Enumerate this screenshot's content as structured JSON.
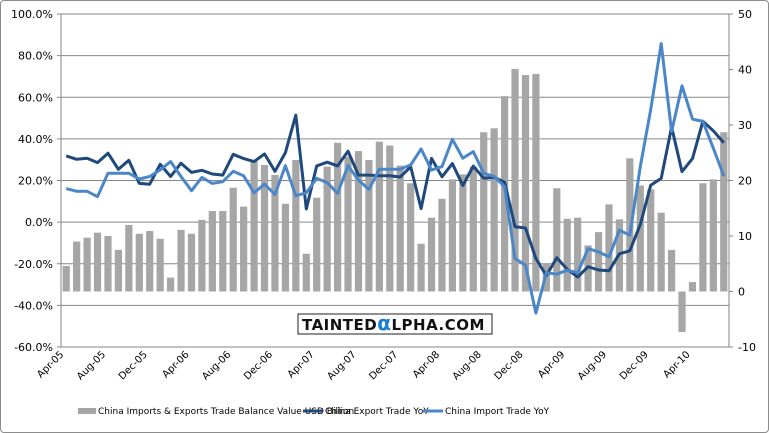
{
  "chart_data": {
    "type": "bar+line",
    "title": "",
    "x": [
      "Apr-05",
      "May-05",
      "Jun-05",
      "Jul-05",
      "Aug-05",
      "Sep-05",
      "Oct-05",
      "Nov-05",
      "Dec-05",
      "Jan-06",
      "Feb-06",
      "Mar-06",
      "Apr-06",
      "May-06",
      "Jun-06",
      "Jul-06",
      "Aug-06",
      "Sep-06",
      "Oct-06",
      "Nov-06",
      "Dec-06",
      "Jan-07",
      "Feb-07",
      "Mar-07",
      "Apr-07",
      "May-07",
      "Jun-07",
      "Jul-07",
      "Aug-07",
      "Sep-07",
      "Oct-07",
      "Nov-07",
      "Dec-07",
      "Jan-08",
      "Feb-08",
      "Mar-08",
      "Apr-08",
      "May-08",
      "Jun-08",
      "Jul-08",
      "Aug-08",
      "Sep-08",
      "Oct-08",
      "Nov-08",
      "Dec-08",
      "Jan-09",
      "Feb-09",
      "Mar-09",
      "Apr-09",
      "May-09",
      "Jun-09",
      "Jul-09",
      "Aug-09",
      "Sep-09",
      "Oct-09",
      "Nov-09",
      "Dec-09",
      "Jan-10",
      "Feb-10",
      "Mar-10",
      "Apr-10",
      "May-10",
      "Jun-10",
      "Jul-10"
    ],
    "tick_labels": [
      "Apr-05",
      "Aug-05",
      "Dec-05",
      "Apr-06",
      "Aug-06",
      "Dec-06",
      "Apr-07",
      "Aug-07",
      "Dec-07",
      "Apr-08",
      "Aug-08",
      "Dec-08",
      "Apr-09",
      "Aug-09",
      "Dec-09",
      "Apr-10"
    ],
    "left_axis": {
      "ylim": [
        -60,
        100
      ],
      "ticks": [
        "100.0%",
        "80.0%",
        "60.0%",
        "40.0%",
        "20.0%",
        "0.0%",
        "-20.0%",
        "-40.0%",
        "-60.0%"
      ],
      "tick_values": [
        100,
        80,
        60,
        40,
        20,
        0,
        -20,
        -40,
        -60
      ]
    },
    "right_axis": {
      "ylim": [
        -10,
        50
      ],
      "ticks": [
        "50",
        "40",
        "30",
        "20",
        "10",
        "0",
        "-10"
      ],
      "tick_values": [
        50,
        40,
        30,
        20,
        10,
        0,
        -10
      ]
    },
    "grid": true,
    "legend_placement": "bottom",
    "series": [
      {
        "name": "China Imports & Exports Trade Balance Value USD Billion",
        "type": "bar",
        "axis": "right",
        "color": "#A6A6A6",
        "values": [
          4.6,
          9.0,
          9.7,
          10.6,
          10.0,
          7.5,
          12.0,
          10.4,
          10.9,
          9.5,
          2.5,
          11.1,
          10.4,
          12.9,
          14.5,
          14.5,
          18.7,
          15.3,
          23.4,
          22.8,
          21.0,
          15.8,
          23.7,
          6.8,
          16.9,
          22.5,
          26.8,
          24.3,
          25.3,
          23.7,
          27.0,
          26.3,
          22.7,
          19.5,
          8.6,
          13.3,
          16.7,
          20.2,
          21.1,
          22.5,
          28.7,
          29.4,
          35.2,
          40.1,
          39.0,
          39.2,
          5.0,
          18.6,
          13.1,
          13.3,
          8.3,
          10.7,
          15.7,
          13.0,
          24.0,
          19.1,
          18.4,
          14.2,
          7.5,
          -7.3,
          1.7,
          19.5,
          20.2,
          28.7
        ]
      },
      {
        "name": "China Export Trade YoY",
        "type": "line",
        "axis": "left",
        "color": "#1F487C",
        "values": [
          31.8,
          30.2,
          30.7,
          28.6,
          33.1,
          25.4,
          29.7,
          18.6,
          18.2,
          27.8,
          21.9,
          28.3,
          23.9,
          24.9,
          23.1,
          22.6,
          32.6,
          30.5,
          29.1,
          32.8,
          24.4,
          33.4,
          51.4,
          6.3,
          27.0,
          28.8,
          27.0,
          34.1,
          22.6,
          22.6,
          22.3,
          22.3,
          21.7,
          26.6,
          6.5,
          30.6,
          21.8,
          28.1,
          17.6,
          26.9,
          21.1,
          21.5,
          19.2,
          -2.2,
          -2.8,
          -17.5,
          -25.7,
          -17.1,
          -22.6,
          -26.4,
          -21.4,
          -23.0,
          -23.4,
          -15.2,
          -13.8,
          -1.2,
          17.7,
          21.0,
          45.7,
          24.3,
          30.5,
          48.5,
          43.9,
          38.1
        ]
      },
      {
        "name": "China Import Trade YoY",
        "type": "line",
        "axis": "left",
        "color": "#4A86C8",
        "values": [
          16.1,
          14.8,
          14.8,
          12.2,
          23.5,
          23.5,
          23.5,
          20.7,
          21.9,
          25.1,
          29.1,
          21.9,
          15.1,
          21.5,
          18.6,
          19.4,
          24.4,
          22.2,
          14.1,
          18.2,
          13.3,
          27.1,
          12.7,
          14.1,
          21.0,
          19.0,
          13.8,
          27.1,
          20.2,
          15.7,
          25.4,
          25.4,
          25.4,
          27.5,
          35.2,
          25.0,
          26.7,
          39.8,
          30.7,
          33.9,
          23.5,
          21.9,
          17.0,
          -17.5,
          -20.7,
          -43.7,
          -24.3,
          -25.0,
          -23.1,
          -24.3,
          -12.7,
          -14.3,
          -16.7,
          -3.9,
          -6.3,
          26.7,
          54.0,
          85.8,
          43.5,
          65.5,
          49.5,
          48.4,
          35.5,
          22.2
        ]
      }
    ]
  },
  "watermark": {
    "text_before": "TAINTED",
    "alpha": "α",
    "text_after": "LPHA.COM"
  }
}
